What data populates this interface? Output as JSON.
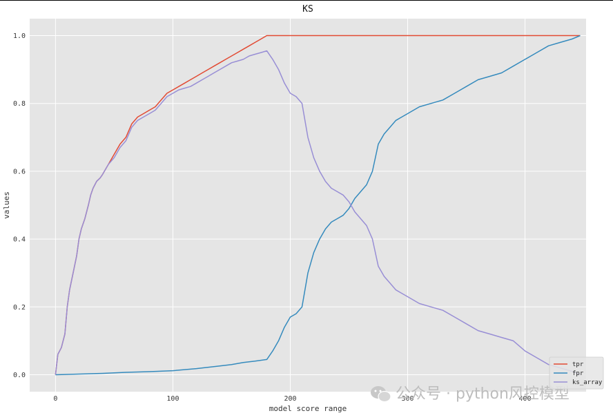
{
  "chart_data": {
    "type": "line",
    "title": "KS",
    "xlabel": "model score range",
    "ylabel": "values",
    "xlim": [
      -22,
      452
    ],
    "ylim": [
      -0.05,
      1.05
    ],
    "xticks": [
      0,
      100,
      200,
      300,
      400
    ],
    "yticks": [
      0.0,
      0.2,
      0.4,
      0.6,
      0.8,
      1.0
    ],
    "xtick_labels": [
      "0",
      "100",
      "200",
      "300",
      "400"
    ],
    "ytick_labels": [
      "0.0",
      "0.2",
      "0.4",
      "0.6",
      "0.8",
      "1.0"
    ],
    "grid": true,
    "legend_position": "bottom-right",
    "series": [
      {
        "name": "tpr",
        "color": "#E24A33",
        "x": [
          0,
          2,
          5,
          8,
          10,
          12,
          15,
          18,
          20,
          22,
          25,
          28,
          30,
          32,
          35,
          38,
          40,
          45,
          50,
          55,
          60,
          65,
          70,
          75,
          80,
          85,
          90,
          95,
          100,
          105,
          110,
          115,
          120,
          125,
          130,
          135,
          140,
          145,
          150,
          155,
          160,
          165,
          170,
          175,
          180,
          185,
          190,
          200,
          250,
          300,
          350,
          400,
          447
        ],
        "y": [
          0.0,
          0.06,
          0.08,
          0.12,
          0.2,
          0.25,
          0.3,
          0.35,
          0.4,
          0.43,
          0.46,
          0.5,
          0.53,
          0.55,
          0.57,
          0.58,
          0.59,
          0.62,
          0.65,
          0.68,
          0.7,
          0.74,
          0.76,
          0.77,
          0.78,
          0.79,
          0.81,
          0.83,
          0.84,
          0.85,
          0.86,
          0.87,
          0.88,
          0.89,
          0.9,
          0.91,
          0.92,
          0.93,
          0.94,
          0.95,
          0.96,
          0.97,
          0.98,
          0.99,
          1.0,
          1.0,
          1.0,
          1.0,
          1.0,
          1.0,
          1.0,
          1.0,
          1.0
        ]
      },
      {
        "name": "fpr",
        "color": "#348ABD",
        "x": [
          0,
          20,
          40,
          60,
          80,
          100,
          120,
          140,
          150,
          160,
          170,
          180,
          185,
          190,
          195,
          200,
          205,
          210,
          215,
          220,
          225,
          230,
          235,
          240,
          245,
          250,
          255,
          260,
          265,
          270,
          275,
          280,
          285,
          290,
          295,
          300,
          310,
          320,
          330,
          340,
          350,
          360,
          370,
          380,
          390,
          400,
          410,
          420,
          430,
          440,
          447
        ],
        "y": [
          0.0,
          0.002,
          0.004,
          0.007,
          0.009,
          0.012,
          0.018,
          0.026,
          0.03,
          0.036,
          0.04,
          0.045,
          0.07,
          0.1,
          0.14,
          0.17,
          0.18,
          0.2,
          0.3,
          0.36,
          0.4,
          0.43,
          0.45,
          0.46,
          0.47,
          0.49,
          0.52,
          0.54,
          0.56,
          0.6,
          0.68,
          0.71,
          0.73,
          0.75,
          0.76,
          0.77,
          0.79,
          0.8,
          0.81,
          0.83,
          0.85,
          0.87,
          0.88,
          0.89,
          0.91,
          0.93,
          0.95,
          0.97,
          0.98,
          0.99,
          1.0
        ]
      },
      {
        "name": "ks_array",
        "color": "#988ED5",
        "x": [
          0,
          2,
          5,
          8,
          10,
          12,
          15,
          18,
          20,
          22,
          25,
          28,
          30,
          32,
          35,
          38,
          40,
          45,
          50,
          55,
          60,
          65,
          70,
          75,
          80,
          85,
          90,
          95,
          100,
          105,
          110,
          115,
          120,
          125,
          130,
          135,
          140,
          145,
          150,
          155,
          160,
          165,
          170,
          175,
          180,
          185,
          190,
          195,
          200,
          205,
          210,
          215,
          220,
          225,
          230,
          235,
          240,
          245,
          250,
          255,
          260,
          265,
          270,
          275,
          280,
          285,
          290,
          295,
          300,
          310,
          320,
          330,
          340,
          350,
          360,
          370,
          380,
          390,
          400,
          410,
          420,
          430,
          440,
          447
        ],
        "y": [
          0.0,
          0.06,
          0.08,
          0.12,
          0.2,
          0.25,
          0.3,
          0.35,
          0.4,
          0.43,
          0.46,
          0.5,
          0.53,
          0.55,
          0.57,
          0.58,
          0.59,
          0.62,
          0.64,
          0.67,
          0.69,
          0.73,
          0.75,
          0.76,
          0.77,
          0.78,
          0.8,
          0.82,
          0.83,
          0.84,
          0.845,
          0.85,
          0.86,
          0.87,
          0.88,
          0.89,
          0.9,
          0.91,
          0.92,
          0.925,
          0.93,
          0.94,
          0.945,
          0.95,
          0.955,
          0.93,
          0.9,
          0.86,
          0.83,
          0.82,
          0.8,
          0.7,
          0.64,
          0.6,
          0.57,
          0.55,
          0.54,
          0.53,
          0.51,
          0.48,
          0.46,
          0.44,
          0.4,
          0.32,
          0.29,
          0.27,
          0.25,
          0.24,
          0.23,
          0.21,
          0.2,
          0.19,
          0.17,
          0.15,
          0.13,
          0.12,
          0.11,
          0.1,
          0.07,
          0.05,
          0.03,
          0.02,
          0.01,
          0.0
        ]
      }
    ]
  },
  "watermark": {
    "text": "公众号 · python风控模型",
    "icon": "wechat-icon"
  },
  "colors": {
    "plot_background": "#E5E5E5",
    "grid": "#FFFFFF"
  }
}
